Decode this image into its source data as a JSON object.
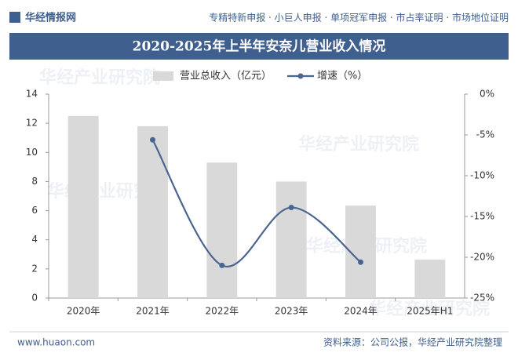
{
  "header": {
    "logo": "华经情报网",
    "links": "专精特新申报 · 小巨人申报 · 单项冠军申报 · 市占率证明 · 市场地位证明"
  },
  "watermark": "华经产业研究院",
  "chart_data": {
    "type": "bar-line",
    "title": "2020-2025年上半年安奈儿营业收入情况",
    "categories": [
      "2020年",
      "2021年",
      "2022年",
      "2023年",
      "2024年",
      "2025年H1"
    ],
    "series": [
      {
        "name": "营业总收入（亿元）",
        "type": "bar",
        "color": "#d9d9d9",
        "values": [
          12.5,
          11.8,
          9.3,
          8.0,
          6.35,
          2.64
        ]
      },
      {
        "name": "增速（%）",
        "type": "line",
        "axis": "y2",
        "color": "#4a6590",
        "values": [
          null,
          -5.6,
          -21.0,
          -13.9,
          -20.6,
          null
        ]
      }
    ],
    "ylim": [
      0,
      14
    ],
    "yticks": [
      0,
      2,
      4,
      6,
      8,
      10,
      12,
      14
    ],
    "y2lim": [
      -25,
      0
    ],
    "y2ticks": [
      {
        "value": 0,
        "label": "0%"
      },
      {
        "value": -5,
        "label": "-5%"
      },
      {
        "value": -10,
        "label": "-10%"
      },
      {
        "value": -15,
        "label": "-15%"
      },
      {
        "value": -20,
        "label": "-20%"
      },
      {
        "value": -25,
        "label": "-25%"
      }
    ],
    "legend": "top"
  },
  "footer": {
    "url": "www.huaon.com",
    "source": "资料来源：公司公报，华经产业研究院整理"
  }
}
